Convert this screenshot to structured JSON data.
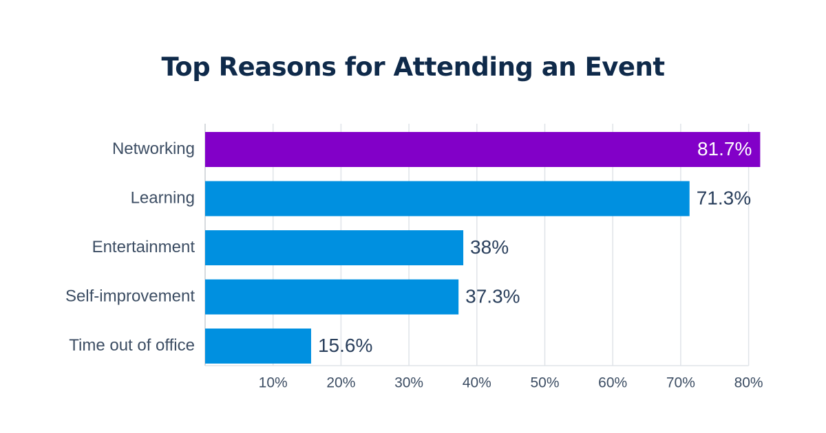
{
  "chart_data": {
    "type": "bar",
    "orientation": "horizontal",
    "title": "Top Reasons for Attending an Event",
    "categories": [
      "Networking",
      "Learning",
      "Entertainment",
      "Self-improvement",
      "Time out of office"
    ],
    "values": [
      81.7,
      71.3,
      38,
      37.3,
      15.6
    ],
    "value_labels": [
      "81.7%",
      "71.3%",
      "38%",
      "37.3%",
      "15.6%"
    ],
    "xlim": [
      0,
      80
    ],
    "xticks": [
      10,
      20,
      30,
      40,
      50,
      60,
      70,
      80
    ],
    "xtick_labels": [
      "10%",
      "20%",
      "30%",
      "40%",
      "50%",
      "60%",
      "70%",
      "80%"
    ],
    "xlabel": "",
    "ylabel": "",
    "grid": true,
    "colors": {
      "highlight": "#8200c8",
      "default": "#0090e0",
      "title": "#0f2a4a"
    },
    "highlight_index": 0
  }
}
